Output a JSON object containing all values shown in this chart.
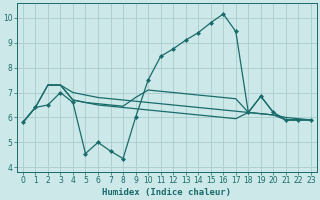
{
  "xlabel": "Humidex (Indice chaleur)",
  "bg_color": "#cce8e8",
  "grid_color": "#aacccc",
  "line_color": "#1a6b6b",
  "xlim": [
    -0.5,
    23.5
  ],
  "ylim": [
    3.8,
    10.6
  ],
  "xticks": [
    0,
    1,
    2,
    3,
    4,
    5,
    6,
    7,
    8,
    9,
    10,
    11,
    12,
    13,
    14,
    15,
    16,
    17,
    18,
    19,
    20,
    21,
    22,
    23
  ],
  "yticks": [
    4,
    5,
    6,
    7,
    8,
    9,
    10
  ],
  "line1_x": [
    0,
    1,
    2,
    3,
    4,
    5,
    6,
    7,
    8,
    9,
    10,
    11,
    12,
    13,
    14,
    15,
    16,
    17,
    18,
    19,
    20,
    21,
    22,
    23
  ],
  "line1_y": [
    5.8,
    6.4,
    6.5,
    7.0,
    6.6,
    4.55,
    5.0,
    4.65,
    4.35,
    6.0,
    7.5,
    8.45,
    8.75,
    9.1,
    9.4,
    9.8,
    10.15,
    9.45,
    6.2,
    6.85,
    6.2,
    5.9,
    5.9,
    5.9
  ],
  "line2_x": [
    0,
    1,
    2,
    3,
    4,
    5,
    6,
    7,
    8,
    9,
    10,
    11,
    12,
    13,
    14,
    15,
    16,
    17,
    18,
    19,
    20,
    21,
    22,
    23
  ],
  "line2_y": [
    5.8,
    6.4,
    7.3,
    7.3,
    7.0,
    6.9,
    6.8,
    6.75,
    6.7,
    6.65,
    6.6,
    6.55,
    6.5,
    6.45,
    6.4,
    6.35,
    6.3,
    6.25,
    6.2,
    6.15,
    6.1,
    6.0,
    5.95,
    5.9
  ],
  "line3_x": [
    0,
    1,
    2,
    3,
    4,
    5,
    6,
    7,
    8,
    9,
    10,
    11,
    12,
    13,
    14,
    15,
    16,
    17,
    18,
    19,
    20,
    21,
    22,
    23
  ],
  "line3_y": [
    5.8,
    6.4,
    7.3,
    7.3,
    6.7,
    6.6,
    6.55,
    6.5,
    6.45,
    6.8,
    7.1,
    7.05,
    7.0,
    6.95,
    6.9,
    6.85,
    6.8,
    6.75,
    6.2,
    6.85,
    6.2,
    5.9,
    5.9,
    5.9
  ],
  "line4_x": [
    2,
    3,
    4,
    5,
    6,
    7,
    8,
    9,
    10,
    11,
    12,
    13,
    14,
    15,
    16,
    17,
    18,
    19,
    20,
    21,
    22,
    23
  ],
  "line4_y": [
    7.3,
    7.3,
    6.7,
    6.6,
    6.5,
    6.45,
    6.4,
    6.35,
    6.3,
    6.25,
    6.2,
    6.15,
    6.1,
    6.05,
    6.0,
    5.95,
    6.2,
    6.15,
    6.1,
    5.9,
    5.9,
    5.9
  ]
}
